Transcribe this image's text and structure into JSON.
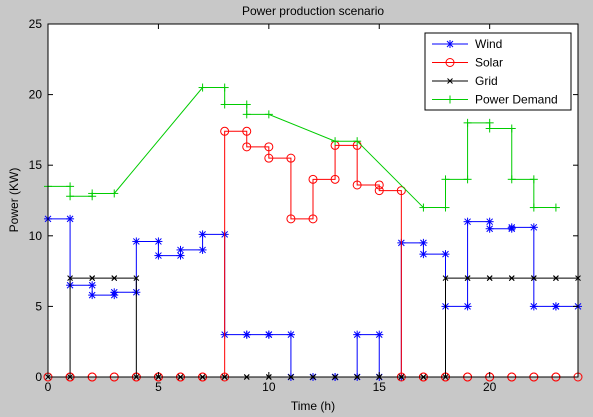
{
  "chart_data": {
    "type": "line",
    "step": true,
    "title": "Power production scenario",
    "xlabel": "Time (h)",
    "ylabel": "Power (KW)",
    "xlim": [
      0,
      24
    ],
    "ylim": [
      0,
      25
    ],
    "xticks": [
      0,
      5,
      10,
      15,
      20
    ],
    "yticks": [
      0,
      5,
      10,
      15,
      20,
      25
    ],
    "grid": false,
    "legend_position": "top-right",
    "x": [
      0,
      1,
      2,
      3,
      4,
      5,
      6,
      7,
      8,
      9,
      10,
      11,
      12,
      13,
      14,
      15,
      16,
      17,
      18,
      19,
      20,
      21,
      22,
      23
    ],
    "series": [
      {
        "name": "Wind",
        "color": "#0000ff",
        "marker": "star",
        "values": [
          11.2,
          6.5,
          5.8,
          6.0,
          9.6,
          8.6,
          9.0,
          10.1,
          3.0,
          3.0,
          3.0,
          0,
          0,
          0,
          3.0,
          0,
          9.5,
          8.7,
          5.0,
          11.0,
          10.5,
          10.6,
          5.0,
          5.0
        ]
      },
      {
        "name": "Solar",
        "color": "#ff0000",
        "marker": "circle",
        "values": [
          0,
          0,
          0,
          0,
          0,
          0,
          0,
          0,
          17.4,
          16.3,
          15.5,
          11.2,
          14.0,
          16.4,
          13.6,
          13.2,
          0,
          0,
          0,
          0,
          0,
          0,
          0,
          0
        ]
      },
      {
        "name": "Grid",
        "color": "#000000",
        "marker": "x",
        "values": [
          0,
          7.0,
          7.0,
          7.0,
          0,
          0,
          0,
          0,
          0,
          0,
          0,
          0,
          0,
          0,
          0,
          0,
          0,
          0,
          7.0,
          7.0,
          7.0,
          7.0,
          7.0,
          7.0
        ]
      },
      {
        "name": "Power Demand",
        "color": "#00cc00",
        "marker": "plus",
        "values": [
          13.5,
          12.8,
          13.0,
          null,
          null,
          null,
          null,
          20.5,
          19.3,
          18.6,
          null,
          null,
          null,
          16.7,
          null,
          null,
          null,
          12.0,
          14.0,
          18.0,
          17.6,
          14.0,
          12.0,
          null
        ]
      }
    ]
  }
}
